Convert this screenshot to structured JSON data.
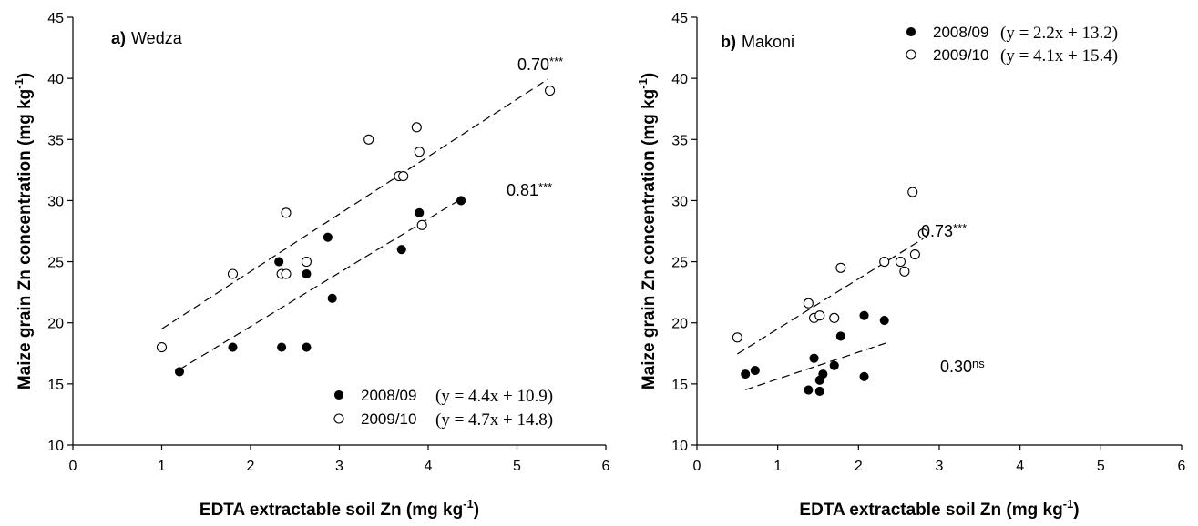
{
  "chart_data": [
    {
      "type": "scatter",
      "panel_letter": "a)",
      "panel_name": "Wedza",
      "xlabel": "EDTA extractable soil Zn (mg kg",
      "xlabel_sup": "-1",
      "xlabel_end": ")",
      "ylabel": "Maize grain Zn concentration (mg kg",
      "ylabel_sup": "-1",
      "ylabel_end": ")",
      "xlim": [
        0,
        6
      ],
      "ylim": [
        10,
        45
      ],
      "xticks": [
        0,
        1,
        2,
        3,
        4,
        5,
        6
      ],
      "yticks": [
        10,
        15,
        20,
        25,
        30,
        35,
        40,
        45
      ],
      "grid": false,
      "legend_position": "bottom-right",
      "series": [
        {
          "name": "2008/09",
          "equation": "(y = 4.4x + 10.9)",
          "marker": "filled-circle",
          "r_label": "0.70",
          "r_sig": "***",
          "fit": {
            "slope": 4.4,
            "intercept": 10.9,
            "x_range": [
              1.2,
              4.35
            ]
          },
          "points": [
            [
              1.2,
              16
            ],
            [
              1.8,
              18
            ],
            [
              2.32,
              25
            ],
            [
              2.35,
              18
            ],
            [
              2.63,
              18
            ],
            [
              2.63,
              24
            ],
            [
              2.87,
              27
            ],
            [
              2.92,
              22
            ],
            [
              3.7,
              26
            ],
            [
              3.9,
              29
            ],
            [
              4.37,
              30
            ]
          ]
        },
        {
          "name": "2009/10",
          "equation": "(y = 4.7x + 14.8)",
          "marker": "open-circle",
          "r_label": "0.81",
          "r_sig": "***",
          "fit": {
            "slope": 4.7,
            "intercept": 14.8,
            "x_range": [
              1.0,
              5.35
            ]
          },
          "points": [
            [
              1.0,
              18
            ],
            [
              1.8,
              24
            ],
            [
              2.35,
              24
            ],
            [
              2.4,
              24
            ],
            [
              2.4,
              29
            ],
            [
              2.63,
              25
            ],
            [
              3.33,
              35
            ],
            [
              3.67,
              32
            ],
            [
              3.72,
              32
            ],
            [
              3.87,
              36
            ],
            [
              3.9,
              34
            ],
            [
              3.93,
              28
            ],
            [
              5.37,
              39
            ]
          ]
        }
      ]
    },
    {
      "type": "scatter",
      "panel_letter": "b)",
      "panel_name": "Makoni",
      "xlabel": "EDTA extractable soil Zn (mg kg",
      "xlabel_sup": "-1",
      "xlabel_end": ")",
      "ylabel": "Maize grain Zn concentration (mg kg",
      "ylabel_sup": "-1",
      "ylabel_end": ")",
      "xlim": [
        0,
        6
      ],
      "ylim": [
        10,
        45
      ],
      "xticks": [
        0,
        1,
        2,
        3,
        4,
        5,
        6
      ],
      "yticks": [
        10,
        15,
        20,
        25,
        30,
        35,
        40,
        45
      ],
      "grid": false,
      "legend_position": "top-right",
      "series": [
        {
          "name": "2008/09",
          "equation": "(y = 2.2x + 13.2)",
          "marker": "filled-circle",
          "r_label": "0.30",
          "r_sig": "ns",
          "fit": {
            "slope": 2.2,
            "intercept": 13.2,
            "x_range": [
              0.6,
              2.35
            ]
          },
          "points": [
            [
              0.6,
              15.8
            ],
            [
              0.72,
              16.1
            ],
            [
              1.38,
              14.5
            ],
            [
              1.45,
              17.1
            ],
            [
              1.52,
              14.4
            ],
            [
              1.52,
              15.3
            ],
            [
              1.56,
              15.8
            ],
            [
              1.7,
              16.5
            ],
            [
              1.78,
              18.9
            ],
            [
              2.07,
              20.6
            ],
            [
              2.07,
              15.6
            ],
            [
              2.32,
              20.2
            ]
          ]
        },
        {
          "name": "2009/10",
          "equation": "(y = 4.1x + 15.4)",
          "marker": "open-circle",
          "r_label": "0.73",
          "r_sig": "***",
          "fit": {
            "slope": 4.1,
            "intercept": 15.4,
            "x_range": [
              0.5,
              2.8
            ]
          },
          "points": [
            [
              0.5,
              18.8
            ],
            [
              1.38,
              21.6
            ],
            [
              1.45,
              20.4
            ],
            [
              1.52,
              20.6
            ],
            [
              1.7,
              20.4
            ],
            [
              1.78,
              24.5
            ],
            [
              2.32,
              25
            ],
            [
              2.52,
              25
            ],
            [
              2.57,
              24.2
            ],
            [
              2.67,
              30.7
            ],
            [
              2.7,
              25.6
            ],
            [
              2.8,
              27.3
            ]
          ]
        }
      ]
    }
  ]
}
